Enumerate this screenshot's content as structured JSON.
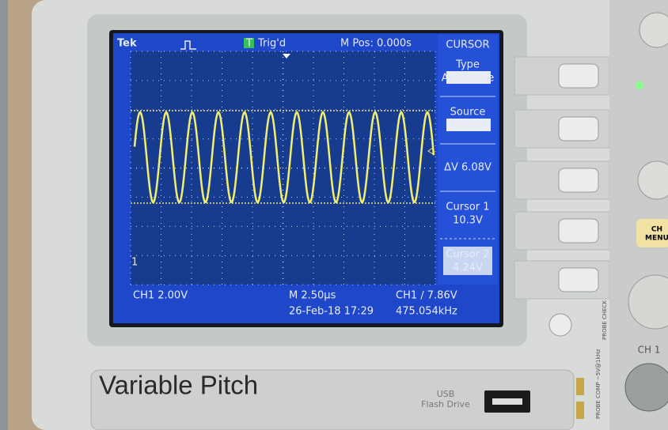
{
  "screen": {
    "brand": "Tek",
    "trigger_badge": "T",
    "trigger_status": "Trig'd",
    "position": "M Pos: 0.000s",
    "menu_title": "CURSOR",
    "menu": [
      {
        "label": "Type",
        "value": "Amplitude"
      },
      {
        "label": "Source",
        "value": "CH1"
      },
      {
        "label": "ΔV 6.08V"
      },
      {
        "label": "Cursor 1",
        "value": "10.3V"
      },
      {
        "label": "Cursor 2",
        "value": "4.24V"
      }
    ],
    "channel_marker": "1",
    "footer": {
      "channel_scale": "CH1  2.00V",
      "time_scale": "M 2.50µs",
      "trigger_level": "CH1 ∕ 7.86V",
      "datetime": "26-Feb-18 17:29",
      "frequency": "475.054kHz"
    }
  },
  "panel": {
    "caption": "Variable Pitch",
    "usb_top": "USB",
    "usb_bottom": "Flash Drive",
    "channel_label": "CH 1",
    "ch_menu_top": "CH",
    "ch_menu_bottom": "MENU",
    "probe_check": "PROBE CHECK",
    "probe_comp": "PROBE COMP ~5V@1kHz"
  }
}
